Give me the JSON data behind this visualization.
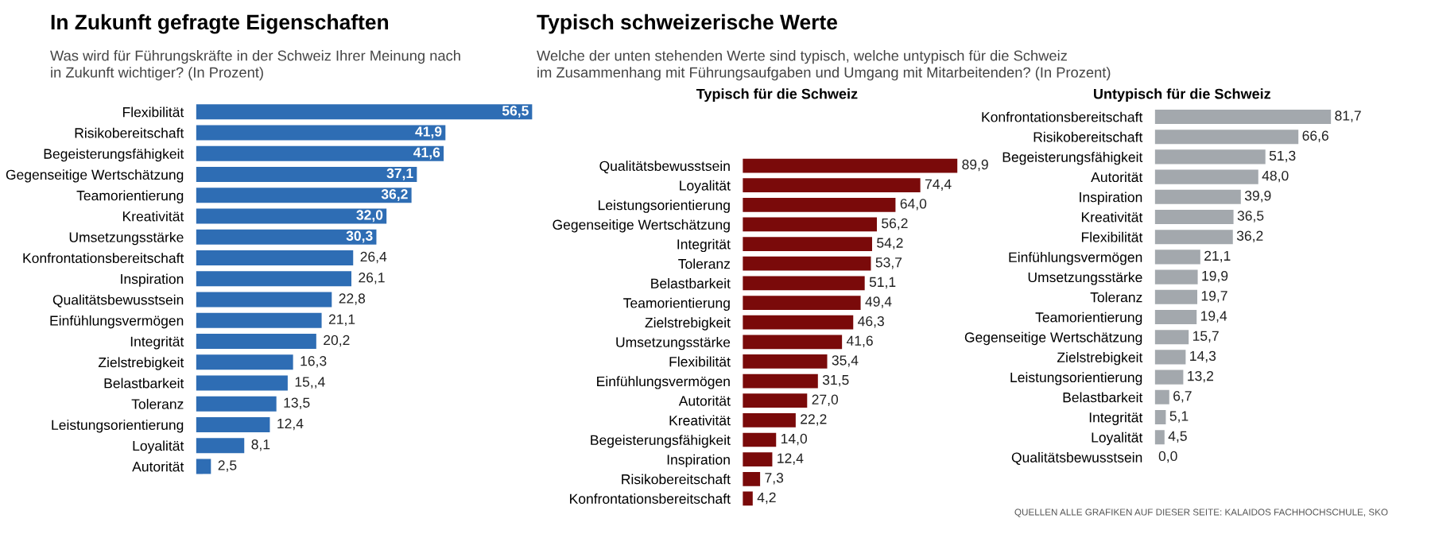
{
  "chart_data": [
    {
      "type": "bar",
      "orientation": "horizontal",
      "title": "In Zukunft gefragte Eigenschaften",
      "subtitle": "Was wird für Führungskräfte in der Schweiz Ihrer Meinung nach\nin Zukunft wichtiger? (In Prozent)",
      "categories": [
        "Flexibilität",
        "Risikobereitschaft",
        "Begeisterungsfähigkeit",
        "Gegenseitige Wertschätzung",
        "Teamorientierung",
        "Kreativität",
        "Umsetzungsstärke",
        "Konfrontationsbereitschaft",
        "Inspiration",
        "Qualitätsbewusstsein",
        "Einfühlungsvermögen",
        "Integrität",
        "Zielstrebigkeit",
        "Belastbarkeit",
        "Toleranz",
        "Leistungsorientierung",
        "Loyalität",
        "Autorität"
      ],
      "values": [
        56.5,
        41.9,
        41.6,
        37.1,
        36.2,
        32.0,
        30.3,
        26.4,
        26.1,
        22.8,
        21.1,
        20.2,
        16.3,
        15.4,
        13.5,
        12.4,
        8.1,
        2.5
      ],
      "value_labels": [
        "56,5",
        "41,9",
        "41,6",
        "37,1",
        "36,2",
        "32,0",
        "30,3",
        "26,4",
        "26,1",
        "22,8",
        "21,1",
        "20,2",
        "16,3",
        "15,,4",
        "13,5",
        "12,4",
        "8,1",
        "2,5"
      ],
      "color": "#2e6db4",
      "tick_labels": "y"
    },
    {
      "type": "bar",
      "orientation": "horizontal",
      "title": "Typisch schweizerische Werte",
      "subtitle": "Welche der unten stehenden Werte sind typisch, welche untypisch für die Schweiz\nim Zusammenhang mit Führungsaufgaben und Umgang mit Mitarbeitenden? (In Prozent)",
      "annotations": [
        "Typisch für die Schweiz"
      ],
      "categories": [
        "Qualitätsbewusstsein",
        "Loyalität",
        "Leistungsorientierung",
        "Gegenseitige Wertschätzung",
        "Integrität",
        "Toleranz",
        "Belastbarkeit",
        "Teamorientierung",
        "Zielstrebigkeit",
        "Umsetzungsstärke",
        "Flexibilität",
        "Einfühlungsvermögen",
        "Autorität",
        "Kreativität",
        "Begeisterungsfähigkeit",
        "Inspiration",
        "Risikobereitschaft",
        "Konfrontationsbereitschaft"
      ],
      "values": [
        89.9,
        74.4,
        64.0,
        56.2,
        54.2,
        53.7,
        51.1,
        49.4,
        46.3,
        41.6,
        35.4,
        31.5,
        27.0,
        22.2,
        14.0,
        12.4,
        7.3,
        4.2
      ],
      "value_labels": [
        "89,9",
        "74,4",
        "64,0",
        "56,2",
        "54,2",
        "53,7",
        "51,1",
        "49,4",
        "46,3",
        "41,6",
        "35,4",
        "31,5",
        "27,0",
        "22,2",
        "14,0",
        "12,4",
        "7,3",
        "4,2"
      ],
      "color": "#7a0a0a",
      "tick_labels": "y"
    },
    {
      "type": "bar",
      "orientation": "horizontal",
      "title": "Untypisch für die Schweiz",
      "annotations": [
        "QUELLEN ALLE GRAFIKEN AUF DIESER SEITE: KALAIDOS FACHHOCHSCHULE, SKO"
      ],
      "categories": [
        "Konfrontationsbereitschaft",
        "Risikobereitschaft",
        "Begeisterungsfähigkeit",
        "Autorität",
        "Inspiration",
        "Kreativität",
        "Flexibilität",
        "Einfühlungsvermögen",
        "Umsetzungsstärke",
        "Toleranz",
        "Teamorientierung",
        "Gegenseitige Wertschätzung",
        "Zielstrebigkeit",
        "Leistungsorientierung",
        "Belastbarkeit",
        "Integrität",
        "Loyalität",
        "Qualitätsbewusstsein"
      ],
      "values": [
        81.7,
        66.6,
        51.3,
        48.0,
        39.9,
        36.5,
        36.2,
        21.1,
        19.9,
        19.7,
        19.4,
        15.7,
        14.3,
        13.2,
        6.7,
        5.1,
        4.5,
        0.0
      ],
      "value_labels": [
        "81,7",
        "66,6",
        "51,3",
        "48,0",
        "39,9",
        "36,5",
        "36,2",
        "21,1",
        "19,9",
        "19,7",
        "19,4",
        "15,7",
        "14,3",
        "13,2",
        "6,7",
        "5,1",
        "4,5",
        "0,0"
      ],
      "color": "#a3a8ad",
      "tick_labels": "y"
    }
  ]
}
